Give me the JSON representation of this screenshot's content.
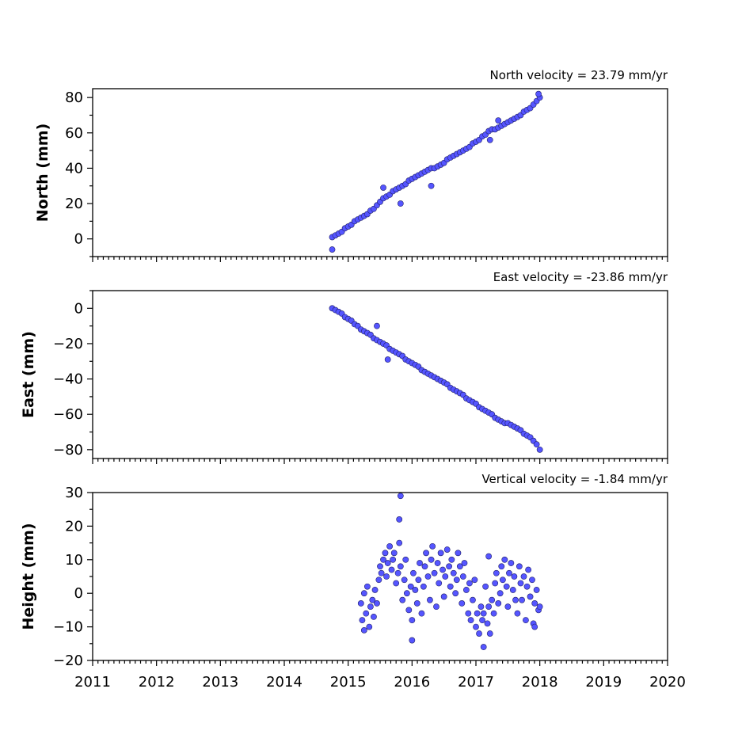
{
  "chart_data": [
    {
      "type": "scatter",
      "title": "North velocity = 23.79 mm/yr",
      "xlabel": "",
      "ylabel": "North (mm)",
      "xlim": [
        2011,
        2020
      ],
      "ylim": [
        -10,
        85
      ],
      "xticks": [
        "2011",
        "2012",
        "2013",
        "2014",
        "2015",
        "2016",
        "2017",
        "2018",
        "2019",
        "2020"
      ],
      "yticks": [
        0,
        20,
        40,
        60,
        80
      ],
      "show_xtick_labels": false,
      "marker_color": "#5555ff",
      "series": [
        {
          "x": [
            2014.75,
            2014.8,
            2014.85,
            2014.9,
            2014.95,
            2015.0,
            2015.05,
            2015.1,
            2015.15,
            2015.2,
            2015.25,
            2015.3,
            2015.35,
            2015.4,
            2015.45,
            2015.5,
            2015.55,
            2015.6,
            2015.65,
            2015.7,
            2015.75,
            2015.8,
            2015.85,
            2015.9,
            2015.95,
            2016.0,
            2016.05,
            2016.1,
            2016.15,
            2016.2,
            2016.25,
            2016.3,
            2016.35,
            2016.4,
            2016.45,
            2016.5,
            2016.55,
            2016.6,
            2016.65,
            2016.7,
            2016.75,
            2016.8,
            2016.85,
            2016.9,
            2016.95,
            2017.0,
            2017.05,
            2017.1,
            2017.15,
            2017.2,
            2017.25,
            2017.3,
            2017.35,
            2017.4,
            2017.45,
            2017.5,
            2017.55,
            2017.6,
            2017.65,
            2017.7,
            2017.75,
            2017.8,
            2017.85,
            2017.9,
            2017.95,
            2018.0,
            2014.75,
            2015.55,
            2015.82,
            2016.3,
            2017.22,
            2017.35,
            2017.98
          ],
          "y": [
            1,
            2,
            3,
            4,
            6,
            7,
            8,
            10,
            11,
            12,
            13,
            14,
            16,
            17,
            19,
            21,
            23,
            24,
            25,
            27,
            28,
            29,
            30,
            31,
            33,
            34,
            35,
            36,
            37,
            38,
            39,
            40,
            40,
            41,
            42,
            43,
            45,
            46,
            47,
            48,
            49,
            50,
            51,
            52,
            54,
            55,
            56,
            58,
            59,
            61,
            62,
            62,
            63,
            64,
            65,
            66,
            67,
            68,
            69,
            70,
            72,
            73,
            74,
            76,
            78,
            80,
            -6,
            29,
            20,
            30,
            56,
            67,
            82
          ]
        }
      ]
    },
    {
      "type": "scatter",
      "title": "East velocity = -23.86 mm/yr",
      "xlabel": "",
      "ylabel": "East (mm)",
      "xlim": [
        2011,
        2020
      ],
      "ylim": [
        -85,
        10
      ],
      "xticks": [
        "2011",
        "2012",
        "2013",
        "2014",
        "2015",
        "2016",
        "2017",
        "2018",
        "2019",
        "2020"
      ],
      "yticks": [
        0,
        -20,
        -40,
        -60,
        -80
      ],
      "show_xtick_labels": false,
      "marker_color": "#5555ff",
      "series": [
        {
          "x": [
            2014.75,
            2014.8,
            2014.85,
            2014.9,
            2014.95,
            2015.0,
            2015.05,
            2015.1,
            2015.15,
            2015.2,
            2015.25,
            2015.3,
            2015.35,
            2015.4,
            2015.45,
            2015.5,
            2015.55,
            2015.6,
            2015.65,
            2015.7,
            2015.75,
            2015.8,
            2015.85,
            2015.9,
            2015.95,
            2016.0,
            2016.05,
            2016.1,
            2016.15,
            2016.2,
            2016.25,
            2016.3,
            2016.35,
            2016.4,
            2016.45,
            2016.5,
            2016.55,
            2016.6,
            2016.65,
            2016.7,
            2016.75,
            2016.8,
            2016.85,
            2016.9,
            2016.95,
            2017.0,
            2017.05,
            2017.1,
            2017.15,
            2017.2,
            2017.25,
            2017.3,
            2017.35,
            2017.4,
            2017.45,
            2017.5,
            2017.55,
            2017.6,
            2017.65,
            2017.7,
            2017.75,
            2017.8,
            2017.85,
            2017.9,
            2017.95,
            2018.0,
            2015.45,
            2015.62
          ],
          "y": [
            0,
            -1,
            -2,
            -3,
            -5,
            -6,
            -7,
            -9,
            -10,
            -12,
            -13,
            -14,
            -15,
            -17,
            -18,
            -19,
            -20,
            -21,
            -23,
            -24,
            -25,
            -26,
            -27,
            -29,
            -30,
            -31,
            -32,
            -33,
            -35,
            -36,
            -37,
            -38,
            -39,
            -40,
            -41,
            -42,
            -43,
            -45,
            -46,
            -47,
            -48,
            -49,
            -51,
            -52,
            -53,
            -54,
            -56,
            -57,
            -58,
            -59,
            -60,
            -62,
            -63,
            -64,
            -65,
            -65,
            -66,
            -67,
            -68,
            -69,
            -71,
            -72,
            -73,
            -75,
            -77,
            -80,
            -10,
            -29
          ]
        }
      ]
    },
    {
      "type": "scatter",
      "title": "Vertical velocity = -1.84 mm/yr",
      "xlabel": "",
      "ylabel": "Height (mm)",
      "xlim": [
        2011,
        2020
      ],
      "ylim": [
        -20,
        30
      ],
      "xticks": [
        "2011",
        "2012",
        "2013",
        "2014",
        "2015",
        "2016",
        "2017",
        "2018",
        "2019",
        "2020"
      ],
      "yticks": [
        -20,
        -10,
        0,
        10,
        20,
        30
      ],
      "show_xtick_labels": true,
      "marker_color": "#5555ff",
      "series": [
        {
          "x": [
            2015.2,
            2015.22,
            2015.25,
            2015.28,
            2015.3,
            2015.33,
            2015.35,
            2015.38,
            2015.4,
            2015.42,
            2015.45,
            2015.48,
            2015.5,
            2015.52,
            2015.55,
            2015.58,
            2015.6,
            2015.62,
            2015.65,
            2015.68,
            2015.7,
            2015.72,
            2015.75,
            2015.78,
            2015.8,
            2015.82,
            2015.85,
            2015.88,
            2015.9,
            2015.92,
            2015.95,
            2015.98,
            2016.0,
            2016.02,
            2016.05,
            2016.08,
            2016.1,
            2016.12,
            2016.15,
            2016.18,
            2016.2,
            2016.22,
            2016.25,
            2016.28,
            2016.3,
            2016.32,
            2016.35,
            2016.38,
            2016.4,
            2016.42,
            2016.45,
            2016.48,
            2016.5,
            2016.52,
            2016.55,
            2016.58,
            2016.6,
            2016.62,
            2016.65,
            2016.68,
            2016.7,
            2016.72,
            2016.75,
            2016.78,
            2016.8,
            2016.82,
            2016.85,
            2016.88,
            2016.9,
            2016.92,
            2016.95,
            2016.98,
            2017.0,
            2017.02,
            2017.05,
            2017.08,
            2017.1,
            2017.12,
            2017.15,
            2017.18,
            2017.2,
            2017.22,
            2017.25,
            2017.28,
            2017.3,
            2017.32,
            2017.35,
            2017.38,
            2017.4,
            2017.42,
            2017.45,
            2017.48,
            2017.5,
            2017.52,
            2017.55,
            2017.58,
            2017.6,
            2017.62,
            2017.65,
            2017.68,
            2017.7,
            2017.72,
            2017.75,
            2017.78,
            2017.8,
            2017.82,
            2017.85,
            2017.88,
            2017.9,
            2017.92,
            2017.95,
            2017.98,
            2018.0,
            2015.82,
            2015.8,
            2016.0,
            2017.12,
            2017.2,
            2015.25,
            2017.92
          ],
          "y": [
            -3,
            -8,
            0,
            -6,
            2,
            -10,
            -4,
            -2,
            -7,
            1,
            -3,
            4,
            8,
            6,
            10,
            12,
            5,
            9,
            14,
            7,
            10,
            12,
            3,
            6,
            15,
            8,
            -2,
            4,
            10,
            0,
            -5,
            2,
            -8,
            6,
            1,
            -3,
            4,
            9,
            -6,
            2,
            8,
            12,
            5,
            -2,
            10,
            14,
            6,
            -4,
            9,
            3,
            12,
            7,
            -1,
            5,
            13,
            8,
            2,
            10,
            6,
            0,
            4,
            12,
            8,
            -3,
            5,
            9,
            1,
            -6,
            3,
            -8,
            -2,
            4,
            -10,
            -6,
            -12,
            -4,
            -8,
            -6,
            2,
            -9,
            -4,
            -12,
            -2,
            -6,
            3,
            6,
            -3,
            0,
            8,
            4,
            10,
            2,
            -4,
            6,
            9,
            1,
            5,
            -2,
            -6,
            8,
            3,
            -2,
            5,
            -8,
            2,
            7,
            -1,
            4,
            -9,
            -3,
            1,
            -5,
            -4,
            29,
            22,
            -14,
            -16,
            11,
            -11,
            -10
          ]
        }
      ]
    }
  ]
}
